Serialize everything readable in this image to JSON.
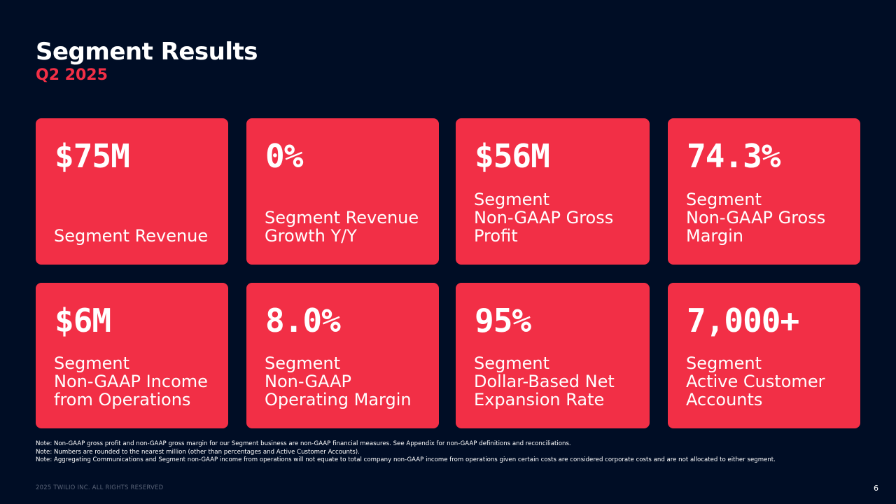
{
  "header": {
    "title": "Segment Results",
    "subtitle": "Q2 2025"
  },
  "metrics": [
    {
      "value": "$75M",
      "label": "Segment Revenue"
    },
    {
      "value": "0%",
      "label": "Segment Revenue\nGrowth Y/Y"
    },
    {
      "value": "$56M",
      "label": "Segment\nNon-GAAP Gross\nProfit"
    },
    {
      "value": "74.3%",
      "label": "Segment\nNon-GAAP Gross\nMargin"
    },
    {
      "value": "$6M",
      "label": "Segment\nNon-GAAP Income\nfrom Operations"
    },
    {
      "value": "8.0%",
      "label": "Segment\nNon-GAAP\nOperating Margin"
    },
    {
      "value": "95%",
      "label": "Segment\nDollar-Based Net\nExpansion Rate"
    },
    {
      "value": "7,000+",
      "label": "Segment\nActive Customer\nAccounts"
    }
  ],
  "notes": [
    "Note: Non-GAAP gross profit and non-GAAP gross margin for our Segment business are non-GAAP financial measures. See Appendix for non-GAAP definitions and reconciliations.",
    "Note: Numbers are rounded to the nearest million (other than percentages and Active Customer Accounts).",
    "Note: Aggregating Communications and Segment non-GAAP income from operations will not equate to total company non-GAAP income from operations given certain costs are considered corporate costs and are not allocated to either segment."
  ],
  "footer": {
    "copyright": "2025 TWILIO INC. ALL RIGHTS RESERVED",
    "page_number": "6"
  },
  "colors": {
    "background": "#000d25",
    "card": "#f22f46",
    "accent": "#f22f46"
  }
}
